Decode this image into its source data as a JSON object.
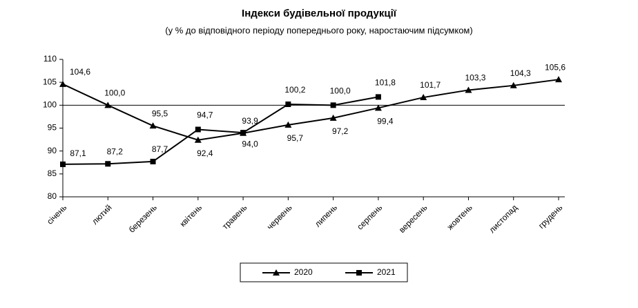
{
  "chart_data": {
    "type": "line",
    "title": "Індекси будівельної продукції",
    "subtitle": "(у % до відповідного періоду попереднього року, наростаючим підсумком)",
    "categories": [
      "січень",
      "лютий",
      "березень",
      "квітень",
      "травень",
      "червень",
      "липень",
      "серпень",
      "вересень",
      "жовтень",
      "листопад",
      "грудень"
    ],
    "series": [
      {
        "name": "2020",
        "color": "#000000",
        "marker": "triangle",
        "values": [
          104.6,
          100.0,
          95.5,
          92.4,
          93.9,
          95.7,
          97.2,
          99.4,
          101.7,
          103.3,
          104.3,
          105.6
        ],
        "value_labels": [
          "104,6",
          "100,0",
          "95,5",
          "92,4",
          "93,9",
          "95,7",
          "97,2",
          "99,4",
          "101,7",
          "103,3",
          "104,3",
          "105,6"
        ]
      },
      {
        "name": "2021",
        "color": "#000000",
        "marker": "square",
        "values": [
          87.1,
          87.2,
          87.7,
          94.7,
          94.0,
          100.2,
          100.0,
          101.8,
          null,
          null,
          null,
          null
        ],
        "value_labels": [
          "87,1",
          "87,2",
          "87,7",
          "94,7",
          "94,0",
          "100,2",
          "100,0",
          "101,8",
          null,
          null,
          null,
          null
        ]
      }
    ],
    "ylim": [
      80,
      110
    ],
    "yticks": [
      80,
      85,
      90,
      95,
      100,
      105,
      110
    ],
    "reference_line": 100,
    "legend": "bottom"
  }
}
